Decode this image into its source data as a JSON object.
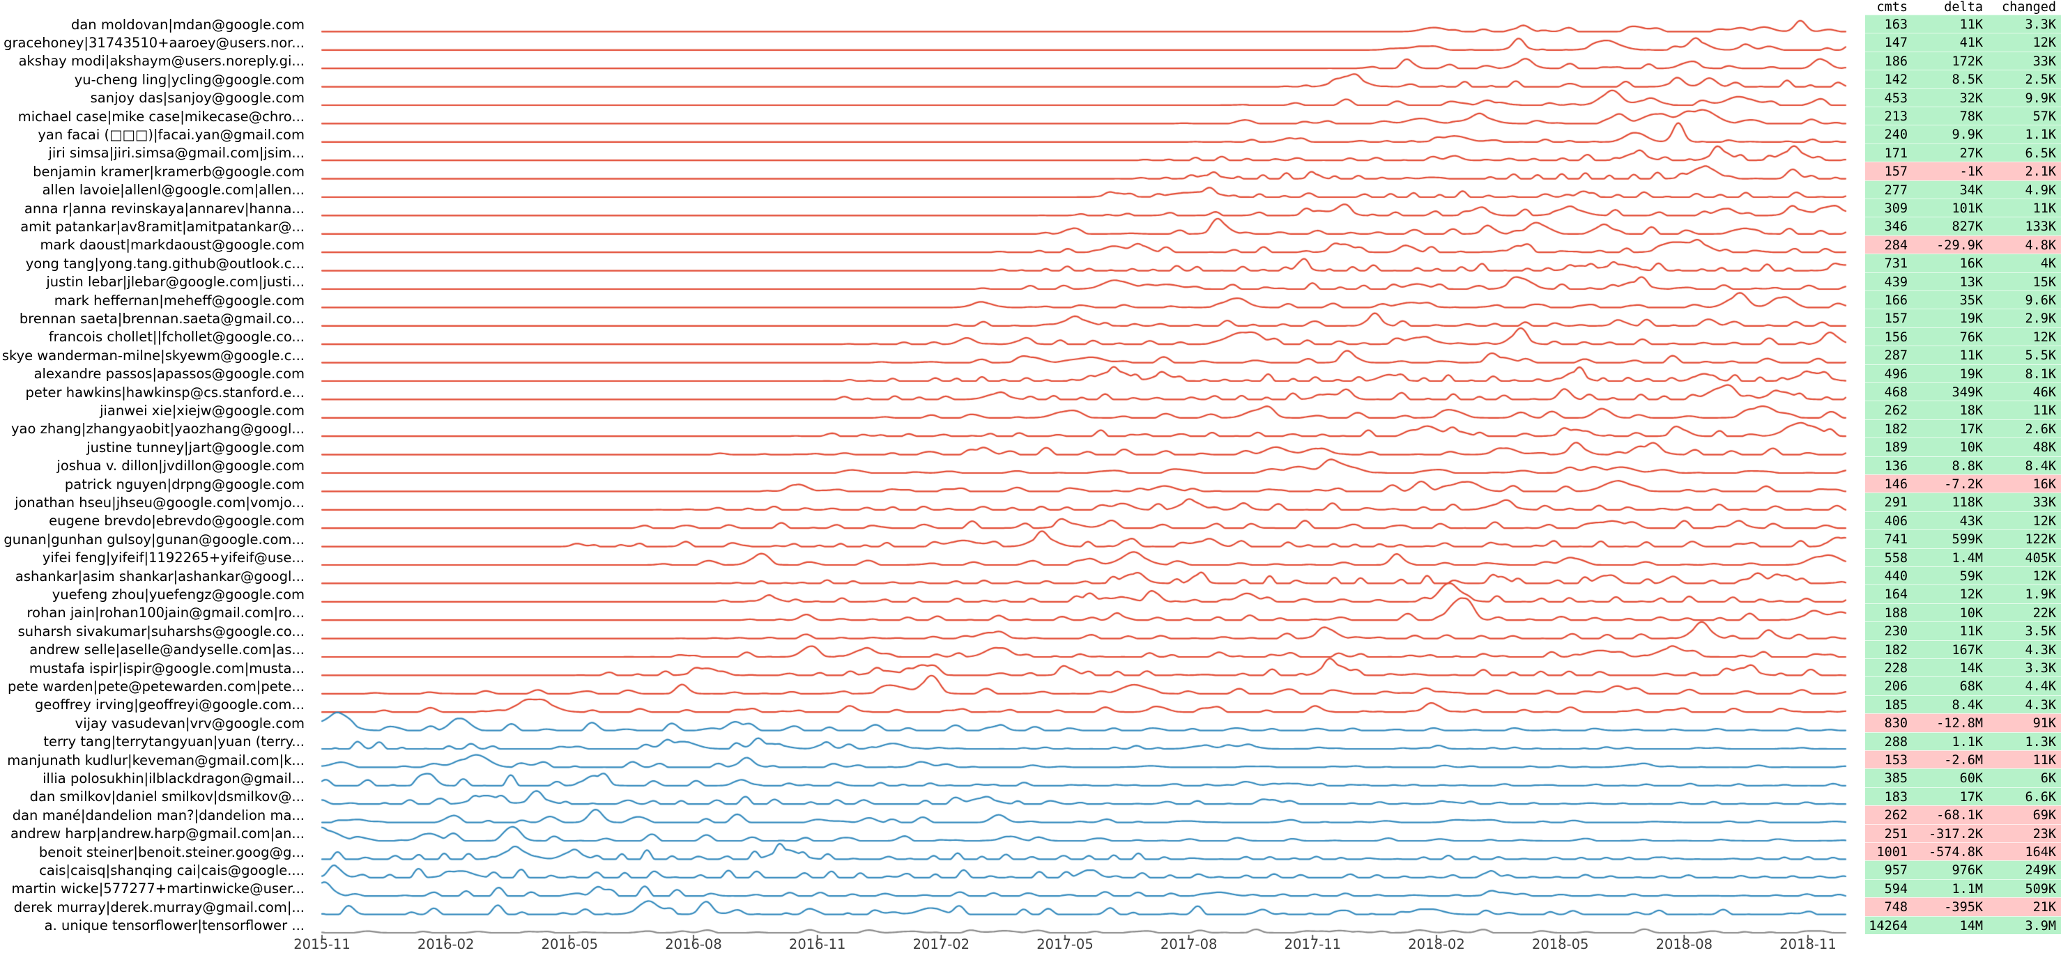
{
  "stats": {
    "columns": [
      "cmts",
      "delta",
      "changed"
    ]
  },
  "colors": {
    "line_red": "#e24a33",
    "line_blue": "#348abd",
    "line_gray": "#8a8a8a",
    "positive_bg": "#b6f2c9",
    "negative_bg": "#ffc8c8",
    "tick_text": "#3c3c3c"
  },
  "chart_data": {
    "type": "line",
    "subtype": "ridgeline-timeseries",
    "x_ticks": [
      "2015-11",
      "2016-02",
      "2016-05",
      "2016-08",
      "2016-11",
      "2017-02",
      "2017-05",
      "2017-08",
      "2017-11",
      "2018-02",
      "2018-05",
      "2018-08",
      "2018-11"
    ],
    "x_range": [
      "2015-11",
      "2018-12"
    ],
    "legend_position": "none",
    "grid": false,
    "rows": [
      {
        "label": "dan moldovan|mdan@google.com",
        "color": "red",
        "cmts": "163",
        "delta": "11K",
        "changed": "3.3K",
        "profile": "late",
        "start": 0.72,
        "amp": 8.5,
        "spike": 14,
        "seed": 11
      },
      {
        "label": "gracehoney|31743510+aaroey@users.nor...",
        "color": "red",
        "cmts": "147",
        "delta": "41K",
        "changed": "12K",
        "profile": "late",
        "start": 0.7,
        "amp": 8.5,
        "spike": 15,
        "seed": 24
      },
      {
        "label": "akshay modi|akshaym@users.noreply.gi...",
        "color": "red",
        "cmts": "186",
        "delta": "172K",
        "changed": "33K",
        "profile": "late",
        "start": 0.67,
        "amp": 8.5,
        "spike": 14,
        "seed": 37
      },
      {
        "label": "yu-cheng ling|ycling@google.com",
        "color": "red",
        "cmts": "142",
        "delta": "8.5K",
        "changed": "2.5K",
        "profile": "late",
        "start": 0.63,
        "amp": 8.5,
        "spike": 14,
        "seed": 50
      },
      {
        "label": "sanjoy das|sanjoy@google.com",
        "color": "red",
        "cmts": "453",
        "delta": "32K",
        "changed": "9.9K",
        "profile": "late",
        "start": 0.6,
        "amp": 9.5,
        "spike": 14,
        "seed": 63
      },
      {
        "label": "michael case|mike case|mikecase@chro...",
        "color": "red",
        "cmts": "213",
        "delta": "78K",
        "changed": "57K",
        "profile": "late",
        "start": 0.57,
        "amp": 8.5,
        "spike": 14,
        "seed": 76
      },
      {
        "label": "yan facai (□□□)|facai.yan@gmail.com",
        "color": "red",
        "cmts": "240",
        "delta": "9.9K",
        "changed": "1.1K",
        "profile": "late",
        "start": 0.57,
        "amp": 8.5,
        "spike": 16,
        "seed": 89
      },
      {
        "label": "jiri simsa|jiri.simsa@gmail.com|jsim...",
        "color": "red",
        "cmts": "171",
        "delta": "27K",
        "changed": "6.5K",
        "profile": "late",
        "start": 0.54,
        "amp": 8.5,
        "spike": 14,
        "seed": 102
      },
      {
        "label": "benjamin kramer|kramerb@google.com",
        "color": "red",
        "cmts": "157",
        "delta": "-1K",
        "changed": "2.1K",
        "profile": "late",
        "start": 0.52,
        "amp": 8.5,
        "spike": 14,
        "seed": 115
      },
      {
        "label": "allen lavoie|allenl@google.com|allen...",
        "color": "red",
        "cmts": "277",
        "delta": "34K",
        "changed": "4.9K",
        "profile": "late",
        "start": 0.5,
        "amp": 9,
        "spike": 14,
        "seed": 128
      },
      {
        "label": "anna r|anna revinskaya|annarev|hanna...",
        "color": "red",
        "cmts": "309",
        "delta": "101K",
        "changed": "11K",
        "profile": "late",
        "start": 0.48,
        "amp": 9,
        "spike": 14,
        "seed": 141
      },
      {
        "label": "amit patankar|av8ramit|amitpatankar@...",
        "color": "red",
        "cmts": "346",
        "delta": "827K",
        "changed": "133K",
        "profile": "late",
        "start": 0.47,
        "amp": 9,
        "spike": 16,
        "seed": 154
      },
      {
        "label": "mark daoust|markdaoust@google.com",
        "color": "red",
        "cmts": "284",
        "delta": "-29.9K",
        "changed": "4.8K",
        "profile": "late",
        "start": 0.44,
        "amp": 8.5,
        "spike": 14,
        "seed": 167
      },
      {
        "label": "yong tang|yong.tang.github@outlook.c...",
        "color": "red",
        "cmts": "731",
        "delta": "16K",
        "changed": "4K",
        "profile": "late",
        "start": 0.44,
        "amp": 10,
        "spike": 15,
        "seed": 180
      },
      {
        "label": "justin lebar|jlebar@google.com|justi...",
        "color": "red",
        "cmts": "439",
        "delta": "13K",
        "changed": "15K",
        "profile": "late",
        "start": 0.43,
        "amp": 9.5,
        "spike": 15,
        "seed": 193
      },
      {
        "label": "mark heffernan|meheff@google.com",
        "color": "red",
        "cmts": "166",
        "delta": "35K",
        "changed": "9.6K",
        "profile": "late",
        "start": 0.41,
        "amp": 8.5,
        "spike": 14,
        "seed": 206
      },
      {
        "label": "brennan saeta|brennan.saeta@gmail.co...",
        "color": "red",
        "cmts": "157",
        "delta": "19K",
        "changed": "2.9K",
        "profile": "late",
        "start": 0.4,
        "amp": 8.5,
        "spike": 14,
        "seed": 219
      },
      {
        "label": "francois chollet||fchollet@google.co...",
        "color": "red",
        "cmts": "156",
        "delta": "76K",
        "changed": "12K",
        "profile": "late",
        "start": 0.35,
        "amp": 8.5,
        "spike": 15,
        "seed": 232
      },
      {
        "label": "skye wanderman-milne|skyewm@google.c...",
        "color": "red",
        "cmts": "287",
        "delta": "11K",
        "changed": "5.5K",
        "profile": "late",
        "start": 0.36,
        "amp": 9,
        "spike": 14,
        "seed": 245
      },
      {
        "label": "alexandre passos|apassos@google.com",
        "color": "red",
        "cmts": "496",
        "delta": "19K",
        "changed": "8.1K",
        "profile": "late",
        "start": 0.34,
        "amp": 9.5,
        "spike": 14,
        "seed": 258
      },
      {
        "label": "peter hawkins|hawkinsp@cs.stanford.e...",
        "color": "red",
        "cmts": "468",
        "delta": "349K",
        "changed": "46K",
        "profile": "late",
        "start": 0.33,
        "amp": 9.5,
        "spike": 14,
        "seed": 271
      },
      {
        "label": "jianwei xie|xiejw@google.com",
        "color": "red",
        "cmts": "262",
        "delta": "18K",
        "changed": "11K",
        "profile": "late",
        "start": 0.36,
        "amp": 8.5,
        "spike": 17,
        "seed": 284
      },
      {
        "label": "yao zhang|zhangyaobit|yaozhang@googl...",
        "color": "red",
        "cmts": "182",
        "delta": "17K",
        "changed": "2.6K",
        "profile": "late",
        "start": 0.31,
        "amp": 8.5,
        "spike": 14,
        "seed": 297
      },
      {
        "label": "justine tunney|jart@google.com",
        "color": "red",
        "cmts": "189",
        "delta": "10K",
        "changed": "48K",
        "profile": "late",
        "start": 0.25,
        "amp": 8.5,
        "spike": 14,
        "seed": 310
      },
      {
        "label": "joshua v. dillon|jvdillon@google.com",
        "color": "red",
        "cmts": "136",
        "delta": "8.8K",
        "changed": "8.4K",
        "profile": "late",
        "start": 0.33,
        "amp": 8.5,
        "spike": 14,
        "seed": 323
      },
      {
        "label": "patrick nguyen|drpng@google.com",
        "color": "red",
        "cmts": "146",
        "delta": "-7.2K",
        "changed": "16K",
        "profile": "late",
        "start": 0.28,
        "amp": 8.5,
        "spike": 14,
        "seed": 336
      },
      {
        "label": "jonathan hseu|jhseu@google.com|vomjo...",
        "color": "red",
        "cmts": "291",
        "delta": "118K",
        "changed": "33K",
        "profile": "late",
        "start": 0.23,
        "amp": 9,
        "spike": 14,
        "seed": 349
      },
      {
        "label": "eugene brevdo|ebrevdo@google.com",
        "color": "red",
        "cmts": "406",
        "delta": "43K",
        "changed": "12K",
        "profile": "late",
        "start": 0.19,
        "amp": 9.5,
        "spike": 14,
        "seed": 362
      },
      {
        "label": "gunan|gunhan gulsoy|gunan@google.com...",
        "color": "red",
        "cmts": "741",
        "delta": "599K",
        "changed": "122K",
        "profile": "late",
        "start": 0.16,
        "amp": 10,
        "spike": 15,
        "seed": 375
      },
      {
        "label": "yifei feng|yifeif|1192265+yifeif@use...",
        "color": "red",
        "cmts": "558",
        "delta": "1.4M",
        "changed": "405K",
        "profile": "late",
        "start": 0.22,
        "amp": 10,
        "spike": 15,
        "seed": 388
      },
      {
        "label": "ashankar|asim shankar|ashankar@googl...",
        "color": "red",
        "cmts": "440",
        "delta": "59K",
        "changed": "12K",
        "profile": "late",
        "start": 0.26,
        "amp": 9.5,
        "spike": 14,
        "seed": 401
      },
      {
        "label": "yuefeng zhou|yuefengz@google.com",
        "color": "red",
        "cmts": "164",
        "delta": "12K",
        "changed": "1.9K",
        "profile": "late",
        "start": 0.26,
        "amp": 8.5,
        "spike": 14,
        "seed": 414
      },
      {
        "label": "rohan jain|rohan100jain@gmail.com|ro...",
        "color": "red",
        "cmts": "188",
        "delta": "10K",
        "changed": "22K",
        "profile": "late",
        "start": 0.28,
        "amp": 8.5,
        "spike": 18,
        "seed": 427
      },
      {
        "label": "suharsh sivakumar|suharshs@google.co...",
        "color": "red",
        "cmts": "230",
        "delta": "11K",
        "changed": "3.5K",
        "profile": "late",
        "start": 0.24,
        "amp": 8.5,
        "spike": 15,
        "seed": 440
      },
      {
        "label": "andrew selle|aselle@andyselle.com|as...",
        "color": "red",
        "cmts": "182",
        "delta": "167K",
        "changed": "4.3K",
        "profile": "late",
        "start": 0.21,
        "amp": 8.5,
        "spike": 16,
        "seed": 453
      },
      {
        "label": "mustafa ispir|ispir@google.com|musta...",
        "color": "red",
        "cmts": "228",
        "delta": "14K",
        "changed": "3.3K",
        "profile": "late",
        "start": 0.17,
        "amp": 9,
        "spike": 15,
        "seed": 466
      },
      {
        "label": "pete warden|pete@petewarden.com|pete...",
        "color": "red",
        "cmts": "206",
        "delta": "68K",
        "changed": "4.4K",
        "profile": "late",
        "start": 0.03,
        "amp": 8.5,
        "spike": 14,
        "seed": 479
      },
      {
        "label": "geoffrey irving|geoffreyi@google.com...",
        "color": "red",
        "cmts": "185",
        "delta": "8.4K",
        "changed": "4.3K",
        "profile": "late",
        "start": 0.02,
        "amp": 8.5,
        "spike": 14,
        "seed": 492
      },
      {
        "label": "vijay vasudevan|vrv@google.com",
        "color": "blue",
        "cmts": "830",
        "delta": "-12.8M",
        "changed": "91K",
        "profile": "early",
        "early": 0.3,
        "tail": 0.35,
        "amp": 10,
        "spike": 15,
        "seed": 505
      },
      {
        "label": "terry tang|terrytangyuan|yuan (terry...",
        "color": "blue",
        "cmts": "288",
        "delta": "1.1K",
        "changed": "1.3K",
        "profile": "early",
        "early": 0.22,
        "tail": 0.25,
        "amp": 10,
        "spike": 15,
        "seed": 518
      },
      {
        "label": "manjunath kudlur|keveman@gmail.com|k...",
        "color": "blue",
        "cmts": "153",
        "delta": "-2.6M",
        "changed": "11K",
        "profile": "early",
        "early": 0.12,
        "tail": 0.22,
        "amp": 11,
        "spike": 16,
        "seed": 531
      },
      {
        "label": "illia polosukhin|ilblackdragon@gmail...",
        "color": "blue",
        "cmts": "385",
        "delta": "60K",
        "changed": "6K",
        "profile": "early",
        "early": 0.15,
        "tail": 0.25,
        "amp": 11,
        "spike": 16,
        "seed": 544
      },
      {
        "label": "dan smilkov|daniel smilkov|dsmilkov@...",
        "color": "blue",
        "cmts": "183",
        "delta": "17K",
        "changed": "6.6K",
        "profile": "early",
        "early": 0.35,
        "tail": 0.3,
        "amp": 10,
        "spike": 14,
        "seed": 557
      },
      {
        "label": "dan mané|dandelion man?|dandelion ma...",
        "color": "blue",
        "cmts": "262",
        "delta": "-68.1K",
        "changed": "69K",
        "profile": "early",
        "early": 0.3,
        "tail": 0.25,
        "amp": 10,
        "spike": 15,
        "seed": 570
      },
      {
        "label": "andrew harp|andrew.harp@gmail.com|an...",
        "color": "blue",
        "cmts": "251",
        "delta": "-317.2K",
        "changed": "23K",
        "profile": "early",
        "early": 0.3,
        "tail": 0.28,
        "amp": 10,
        "spike": 16,
        "seed": 583
      },
      {
        "label": "benoit steiner|benoit.steiner.goog@g...",
        "color": "blue",
        "cmts": "1001",
        "delta": "-574.8K",
        "changed": "164K",
        "profile": "early",
        "early": 0.4,
        "tail": 0.35,
        "amp": 10,
        "spike": 14,
        "seed": 596
      },
      {
        "label": "cais|caisq|shanqing cai|cais@google....",
        "color": "blue",
        "cmts": "957",
        "delta": "976K",
        "changed": "249K",
        "profile": "early",
        "early": 0.45,
        "tail": 0.45,
        "amp": 10,
        "spike": 16,
        "seed": 609
      },
      {
        "label": "martin wicke|577277+martinwicke@user...",
        "color": "blue",
        "cmts": "594",
        "delta": "1.1M",
        "changed": "509K",
        "profile": "early",
        "early": 0.3,
        "tail": 0.35,
        "amp": 10,
        "spike": 16,
        "seed": 622
      },
      {
        "label": "derek murray|derek.murray@gmail.com|...",
        "color": "blue",
        "cmts": "748",
        "delta": "-395K",
        "changed": "21K",
        "profile": "early",
        "early": 0.6,
        "tail": 0.55,
        "amp": 10,
        "spike": 15,
        "seed": 635
      },
      {
        "label": "a. unique tensorflower|tensorflower ...",
        "color": "gray",
        "cmts": "14264",
        "delta": "14M",
        "changed": "3.9M",
        "profile": "full",
        "amp": 6.5,
        "spike": 4,
        "seed": 648
      }
    ]
  }
}
